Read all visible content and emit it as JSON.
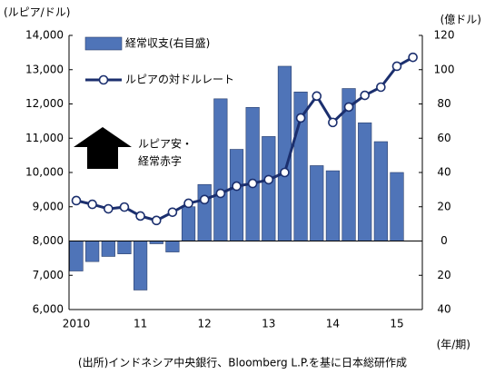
{
  "chart_data": {
    "type": "bar-line",
    "y_label": "(ルピア/ドル)",
    "y2_label": "(億ドル)",
    "x_label": "(年/期)",
    "source": "(出所)インドネシア中央銀行、Bloomberg L.P.を基に日本総研作成",
    "annotation": [
      "ルピア安・",
      "経常赤字"
    ],
    "categories": [
      "2010",
      null,
      null,
      null,
      "11",
      null,
      null,
      null,
      "12",
      null,
      null,
      null,
      "13",
      null,
      null,
      null,
      "14",
      null,
      null,
      null,
      "15",
      null
    ],
    "ylim": [
      6000,
      14000
    ],
    "yticks": [
      {
        "value": 6000,
        "label": "6,000"
      },
      {
        "value": 7000,
        "label": "7,000"
      },
      {
        "value": 8000,
        "label": "8,000"
      },
      {
        "value": 9000,
        "label": "9,000"
      },
      {
        "value": 10000,
        "label": "10,000"
      },
      {
        "value": 11000,
        "label": "11,000"
      },
      {
        "value": 12000,
        "label": "12,000"
      },
      {
        "value": 13000,
        "label": "13,000"
      },
      {
        "value": 14000,
        "label": "14,000"
      }
    ],
    "y2lim": [
      -40,
      120
    ],
    "y2ticks": [
      {
        "value": -40,
        "label": "40"
      },
      {
        "value": -20,
        "label": "20"
      },
      0,
      20,
      40,
      60,
      80,
      100,
      120
    ],
    "series": [
      {
        "name": "経常収支(右目盛)",
        "type": "bar",
        "axis": "y2",
        "color": "#4f74b8",
        "values": [
          -17.5,
          -12,
          -9,
          -7.5,
          -28.6,
          -1.6,
          -6.4,
          20,
          33,
          83,
          53.5,
          78,
          61,
          102,
          87,
          44,
          41,
          89,
          69,
          58,
          40,
          null
        ]
      },
      {
        "name": "ルピアの対ドルレート",
        "type": "line",
        "color": "#1b2f6e",
        "values": [
          9180,
          9070,
          8940,
          8990,
          8730,
          8600,
          8840,
          9100,
          9210,
          9390,
          9600,
          9680,
          9790,
          10000,
          11590,
          12230,
          11460,
          11910,
          12250,
          12490,
          13100,
          13360
        ]
      }
    ]
  }
}
